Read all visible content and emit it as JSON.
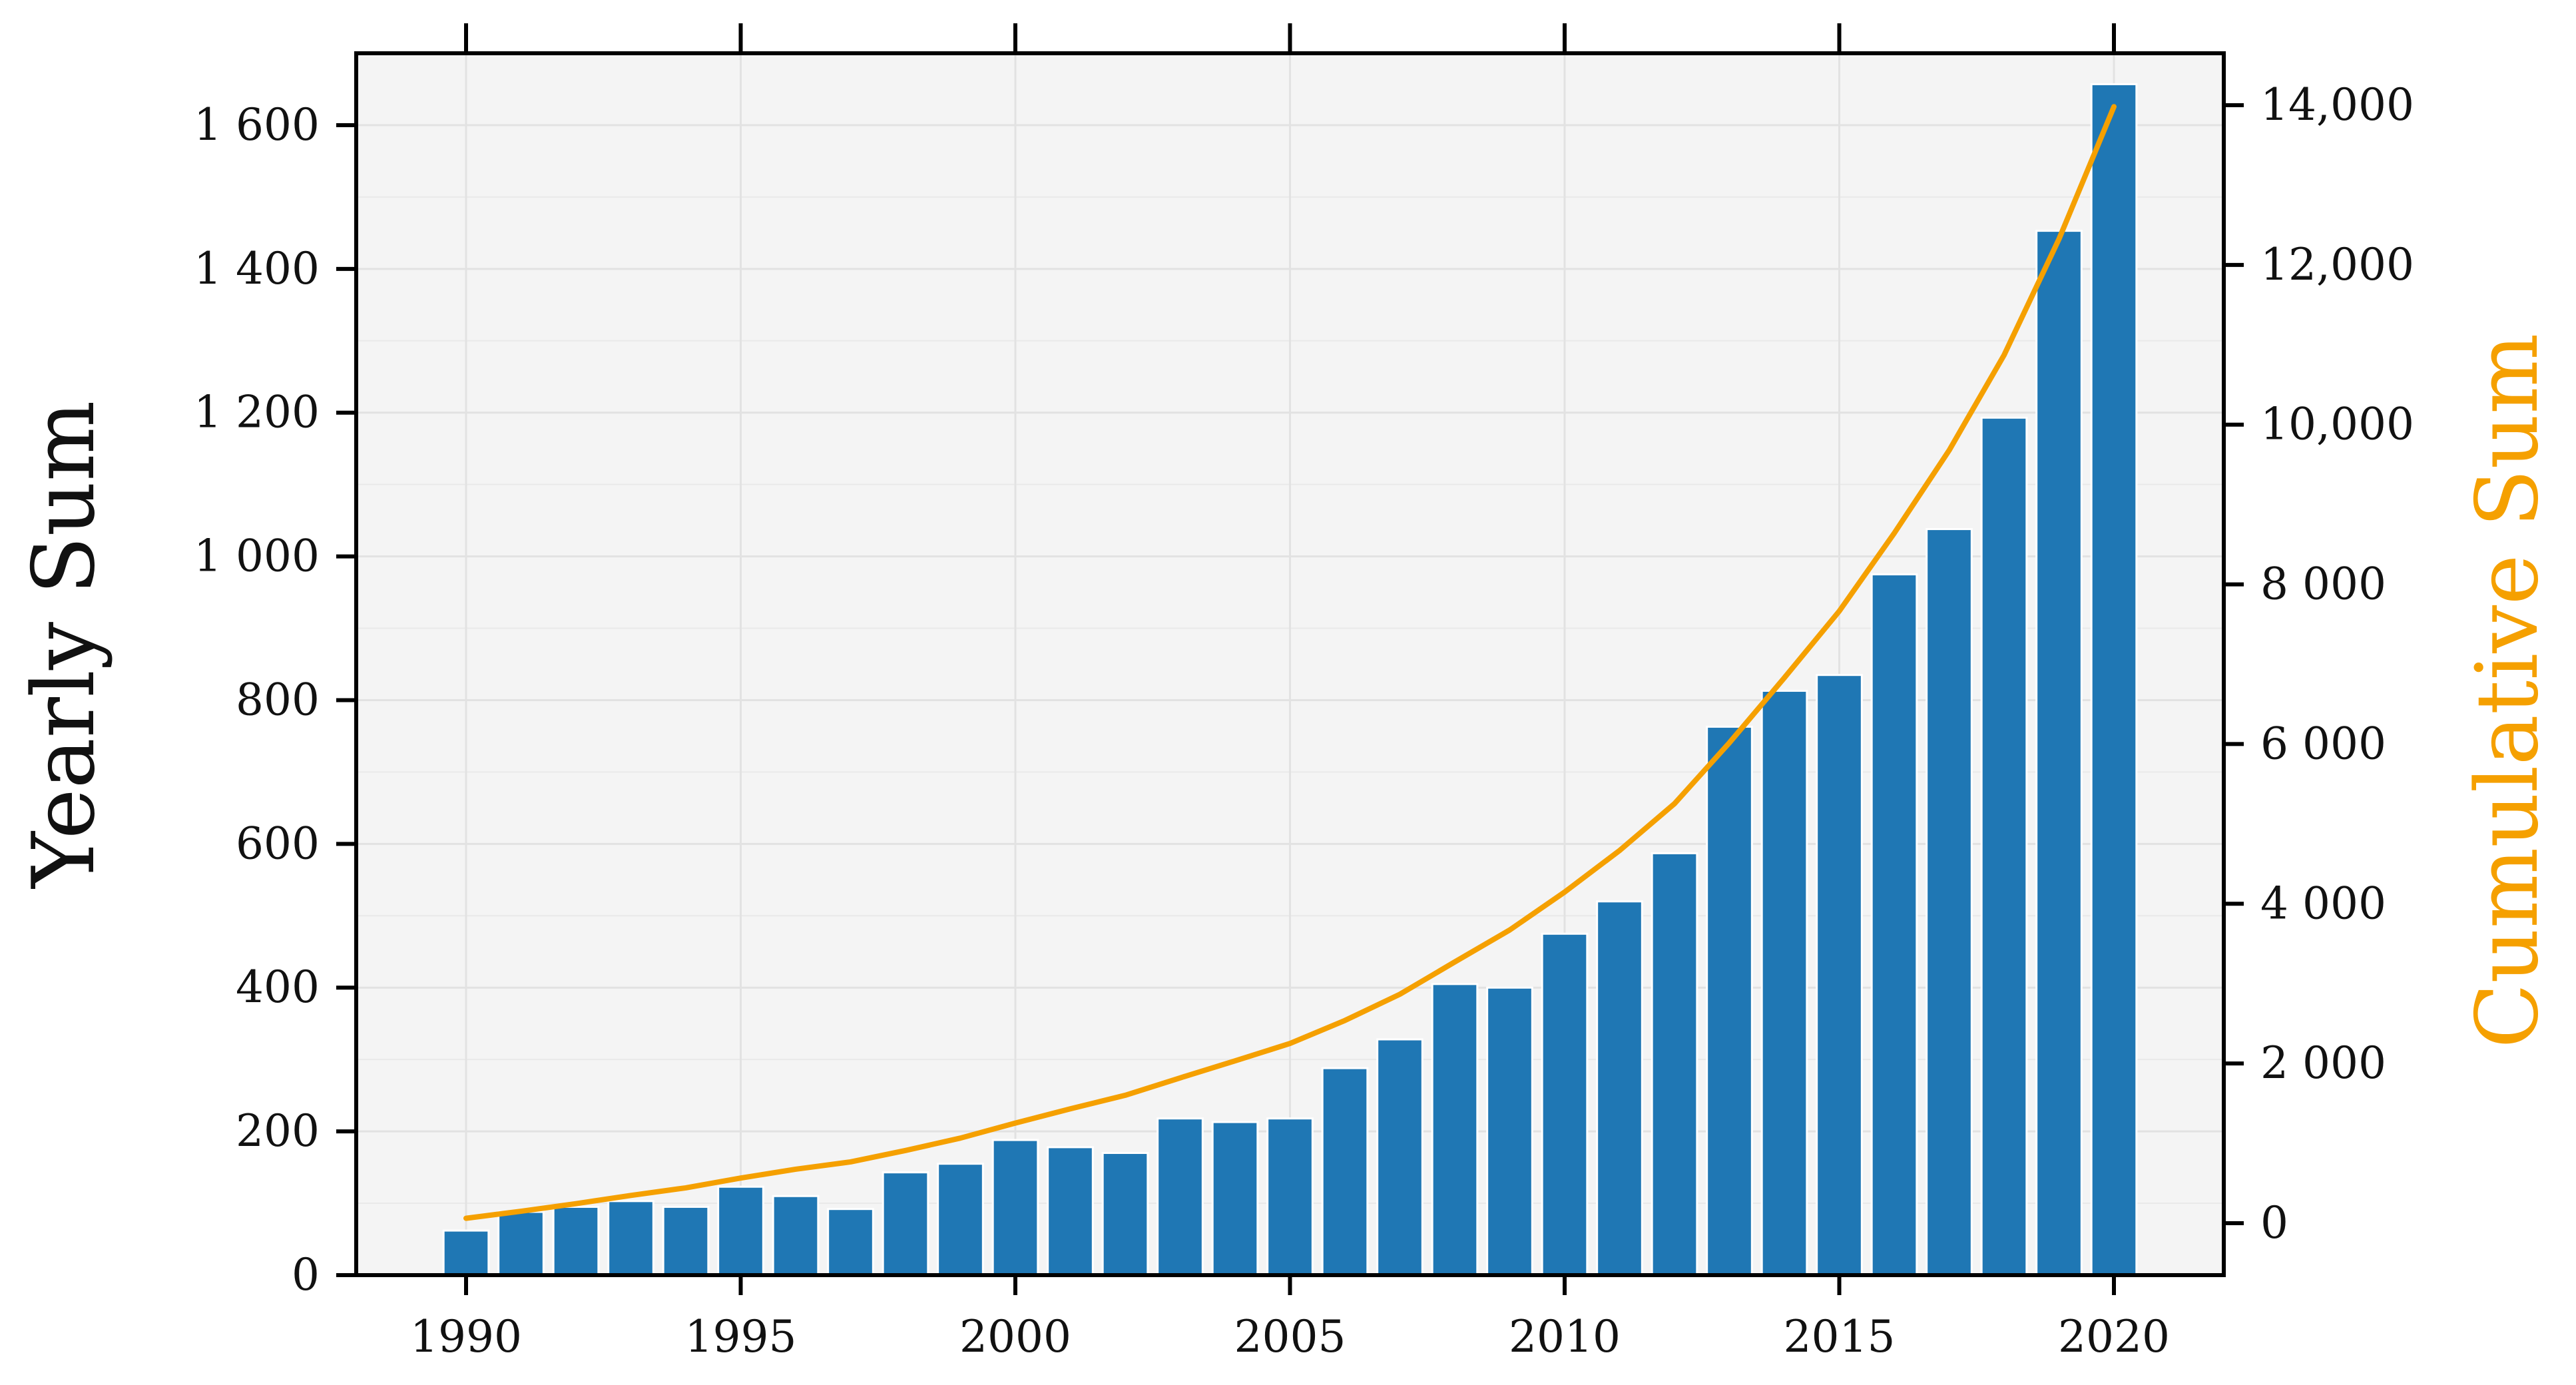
{
  "colors": {
    "bars": "#1f77b4",
    "cumulative_line": "#f5a000",
    "plot_background": "#f4f4f4",
    "grid": "#e2e2e2",
    "axis": "#000000"
  },
  "chart_data": {
    "type": "bar",
    "title": "",
    "xlabel": "",
    "ylabel": "Yearly Sum",
    "y2label": "Cumulative Sum",
    "x": [
      1990,
      1991,
      1992,
      1993,
      1994,
      1995,
      1996,
      1997,
      1998,
      1999,
      2000,
      2001,
      2002,
      2003,
      2004,
      2005,
      2006,
      2007,
      2008,
      2009,
      2010,
      2011,
      2012,
      2013,
      2014,
      2015,
      2016,
      2017,
      2018,
      2019,
      2020
    ],
    "xlim": [
      1988,
      2022
    ],
    "ylim": [
      0,
      1700
    ],
    "y2lim": [
      -650,
      14650
    ],
    "grid": true,
    "series": [
      {
        "name": "Yearly Sum",
        "type": "bar",
        "axis": "left",
        "values": [
          62,
          88,
          95,
          103,
          95,
          123,
          110,
          92,
          143,
          155,
          188,
          178,
          170,
          218,
          213,
          218,
          288,
          328,
          405,
          400,
          475,
          520,
          587,
          763,
          813,
          835,
          975,
          1038,
          1193,
          1453,
          1657
        ]
      },
      {
        "name": "Cumulative Sum",
        "type": "line",
        "axis": "right",
        "values": [
          62,
          150,
          245,
          348,
          443,
          566,
          676,
          768,
          911,
          1066,
          1254,
          1432,
          1602,
          1820,
          2033,
          2251,
          2539,
          2867,
          3272,
          3672,
          4147,
          4667,
          5254,
          6017,
          6830,
          7665,
          8640,
          9678,
          10871,
          12324,
          13981
        ]
      }
    ],
    "x_ticks": [
      {
        "value": 1990,
        "label": "1990"
      },
      {
        "value": 1995,
        "label": "1995"
      },
      {
        "value": 2000,
        "label": "2000"
      },
      {
        "value": 2005,
        "label": "2005"
      },
      {
        "value": 2010,
        "label": "2010"
      },
      {
        "value": 2015,
        "label": "2015"
      },
      {
        "value": 2020,
        "label": "2020"
      }
    ],
    "y_ticks": [
      {
        "value": 0,
        "label": "0"
      },
      {
        "value": 200,
        "label": "200"
      },
      {
        "value": 400,
        "label": "400"
      },
      {
        "value": 600,
        "label": "600"
      },
      {
        "value": 800,
        "label": "800"
      },
      {
        "value": 1000,
        "label": "1 000"
      },
      {
        "value": 1200,
        "label": "1 200"
      },
      {
        "value": 1400,
        "label": "1 400"
      },
      {
        "value": 1600,
        "label": "1 600"
      }
    ],
    "y2_ticks": [
      {
        "value": 0,
        "label": "0"
      },
      {
        "value": 2000,
        "label": "2 000"
      },
      {
        "value": 4000,
        "label": "4 000"
      },
      {
        "value": 6000,
        "label": "6 000"
      },
      {
        "value": 8000,
        "label": "8 000"
      },
      {
        "value": 10000,
        "label": "10,000"
      },
      {
        "value": 12000,
        "label": "12,000"
      },
      {
        "value": 14000,
        "label": "14,000"
      }
    ]
  }
}
